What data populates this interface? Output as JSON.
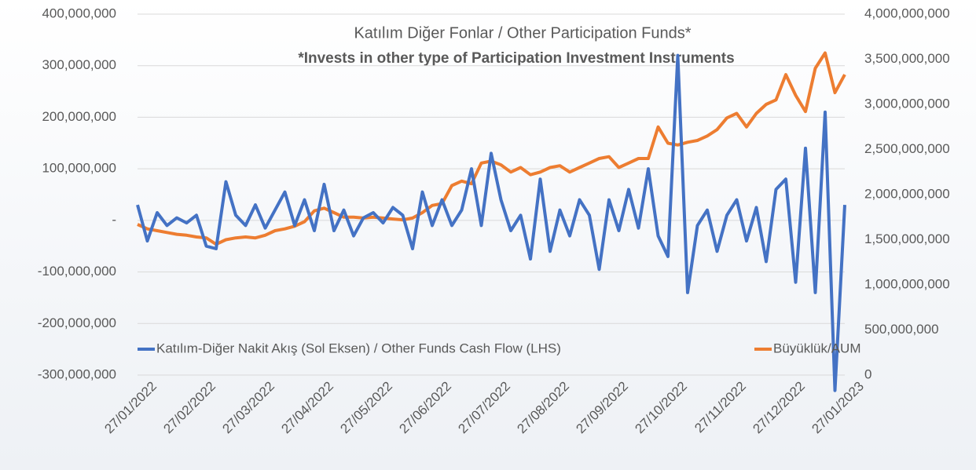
{
  "chart_data": {
    "type": "line",
    "title": "Katılım Diğer Fonlar / Other Participation Funds*",
    "subtitle": "*Invests in other type of Participation Investment Instruments",
    "categories": [
      "27/01/2022",
      null,
      null,
      null,
      null,
      null,
      "27/02/2022",
      null,
      null,
      null,
      null,
      null,
      "27/03/2022",
      null,
      null,
      null,
      null,
      null,
      "27/04/2022",
      null,
      null,
      null,
      null,
      null,
      "27/05/2022",
      null,
      null,
      null,
      null,
      null,
      "27/06/2022",
      null,
      null,
      null,
      null,
      null,
      "27/07/2022",
      null,
      null,
      null,
      null,
      null,
      "27/08/2022",
      null,
      null,
      null,
      null,
      null,
      "27/09/2022",
      null,
      null,
      null,
      null,
      null,
      "27/10/2022",
      null,
      null,
      null,
      null,
      null,
      "27/11/2022",
      null,
      null,
      null,
      null,
      null,
      "27/12/2022",
      null,
      null,
      null,
      null,
      null,
      "27/01/2023"
    ],
    "series": [
      {
        "name": "Katılım-Diğer Nakit Akış (Sol Eksen) / Other Funds Cash Flow (LHS)",
        "color": "#4472c4",
        "axis": "y",
        "values": [
          30000000,
          -40000000,
          15000000,
          -10000000,
          5000000,
          -5000000,
          10000000,
          -50000000,
          -55000000,
          75000000,
          10000000,
          -10000000,
          30000000,
          -15000000,
          20000000,
          55000000,
          -10000000,
          40000000,
          -20000000,
          70000000,
          -20000000,
          20000000,
          -30000000,
          5000000,
          15000000,
          -5000000,
          25000000,
          10000000,
          -55000000,
          55000000,
          -10000000,
          40000000,
          -10000000,
          20000000,
          100000000,
          -10000000,
          130000000,
          40000000,
          -20000000,
          10000000,
          -75000000,
          80000000,
          -60000000,
          20000000,
          -30000000,
          40000000,
          10000000,
          -95000000,
          40000000,
          -20000000,
          60000000,
          -15000000,
          100000000,
          -30000000,
          -70000000,
          320000000,
          -140000000,
          -10000000,
          20000000,
          -60000000,
          10000000,
          40000000,
          -40000000,
          25000000,
          -80000000,
          60000000,
          80000000,
          -120000000,
          140000000,
          -140000000,
          210000000,
          -330000000,
          30000000
        ]
      },
      {
        "name": "Büyüklük/AUM",
        "color": "#ed7d31",
        "axis": "y2",
        "values": [
          1670000000,
          1620000000,
          1600000000,
          1580000000,
          1560000000,
          1550000000,
          1530000000,
          1520000000,
          1450000000,
          1500000000,
          1520000000,
          1530000000,
          1520000000,
          1550000000,
          1600000000,
          1620000000,
          1650000000,
          1700000000,
          1820000000,
          1850000000,
          1800000000,
          1750000000,
          1750000000,
          1740000000,
          1750000000,
          1740000000,
          1730000000,
          1720000000,
          1740000000,
          1800000000,
          1880000000,
          1900000000,
          2100000000,
          2150000000,
          2120000000,
          2350000000,
          2370000000,
          2330000000,
          2250000000,
          2300000000,
          2220000000,
          2250000000,
          2300000000,
          2320000000,
          2250000000,
          2300000000,
          2350000000,
          2400000000,
          2420000000,
          2300000000,
          2350000000,
          2400000000,
          2400000000,
          2750000000,
          2570000000,
          2550000000,
          2580000000,
          2600000000,
          2650000000,
          2720000000,
          2850000000,
          2900000000,
          2750000000,
          2900000000,
          3000000000,
          3050000000,
          3330000000,
          3100000000,
          2920000000,
          3400000000,
          3570000000,
          3130000000,
          3330000000
        ]
      }
    ],
    "ylim": [
      -300000000,
      400000000
    ],
    "yticks": [
      {
        "value": -300000000,
        "label": "-300,000,000"
      },
      {
        "value": -200000000,
        "label": "-200,000,000"
      },
      {
        "value": -100000000,
        "label": "-100,000,000"
      },
      {
        "value": 0,
        "label": "-"
      },
      {
        "value": 100000000,
        "label": "100,000,000"
      },
      {
        "value": 200000000,
        "label": "200,000,000"
      },
      {
        "value": 300000000,
        "label": "300,000,000"
      },
      {
        "value": 400000000,
        "label": "400,000,000"
      }
    ],
    "y2lim": [
      0,
      4000000000
    ],
    "y2ticks": [
      0,
      {
        "value": 500000000,
        "label": "500,000,000"
      },
      {
        "value": 1000000000,
        "label": "1,000,000,000"
      },
      {
        "value": 1500000000,
        "label": "1,500,000,000"
      },
      {
        "value": 2000000000,
        "label": "2,000,000,000"
      },
      {
        "value": 2500000000,
        "label": "2,500,000,000"
      },
      {
        "value": 3000000000,
        "label": "3,000,000,000"
      },
      {
        "value": 3500000000,
        "label": "3,500,000,000"
      },
      {
        "value": 4000000000,
        "label": "4,000,000,000"
      }
    ],
    "grid": true
  }
}
